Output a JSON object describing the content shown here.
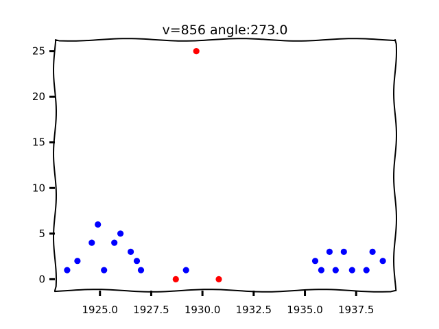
{
  "chart_data": {
    "type": "scatter",
    "title": "v=856 angle:273.0",
    "xlabel": "",
    "ylabel": "",
    "xlim": [
      1922.8,
      1939.4
    ],
    "ylim": [
      -1.25,
      26.25
    ],
    "x_ticks": [
      1925.0,
      1927.5,
      1930.0,
      1932.5,
      1935.0,
      1937.5
    ],
    "x_tick_labels": [
      "1925.0",
      "1927.5",
      "1930.0",
      "1932.5",
      "1935.0",
      "1937.5"
    ],
    "y_ticks": [
      0,
      5,
      10,
      15,
      20,
      25
    ],
    "y_tick_labels": [
      "0",
      "5",
      "10",
      "15",
      "20",
      "25"
    ],
    "grid": false,
    "series": [
      {
        "color": "#0000ff",
        "points": [
          {
            "x": 1923.4,
            "y": 1
          },
          {
            "x": 1923.9,
            "y": 2
          },
          {
            "x": 1924.6,
            "y": 4
          },
          {
            "x": 1924.9,
            "y": 6
          },
          {
            "x": 1925.2,
            "y": 1
          },
          {
            "x": 1925.7,
            "y": 4
          },
          {
            "x": 1926.0,
            "y": 5
          },
          {
            "x": 1926.5,
            "y": 3
          },
          {
            "x": 1926.8,
            "y": 2
          },
          {
            "x": 1927.0,
            "y": 1
          },
          {
            "x": 1929.2,
            "y": 1
          },
          {
            "x": 1935.5,
            "y": 2
          },
          {
            "x": 1935.8,
            "y": 1
          },
          {
            "x": 1936.2,
            "y": 3
          },
          {
            "x": 1936.5,
            "y": 1
          },
          {
            "x": 1936.9,
            "y": 3
          },
          {
            "x": 1937.3,
            "y": 1
          },
          {
            "x": 1938.0,
            "y": 1
          },
          {
            "x": 1938.3,
            "y": 3
          },
          {
            "x": 1938.8,
            "y": 2
          }
        ]
      },
      {
        "color": "#ff0000",
        "points": [
          {
            "x": 1928.7,
            "y": 0
          },
          {
            "x": 1929.7,
            "y": 25
          },
          {
            "x": 1930.8,
            "y": 0
          }
        ]
      }
    ]
  }
}
